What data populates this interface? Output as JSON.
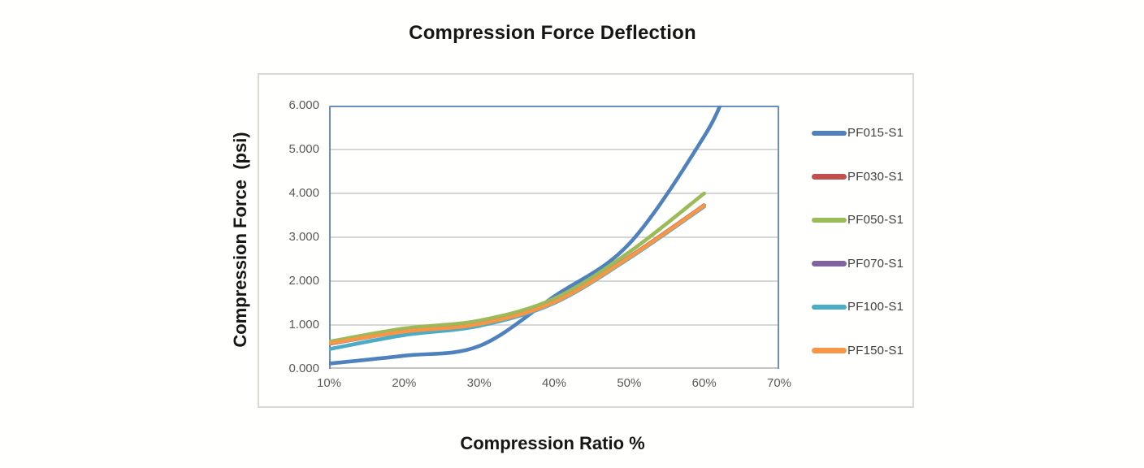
{
  "title": "Compression Force Deflection",
  "axes": {
    "y_title": "Compression Force  (psi)",
    "x_title": "Compression Ratio %",
    "y_ticks": [
      "6.000",
      "5.000",
      "4.000",
      "3.000",
      "2.000",
      "1.000",
      "0.000"
    ],
    "x_ticks": [
      "10%",
      "20%",
      "30%",
      "40%",
      "50%",
      "60%",
      "70%"
    ]
  },
  "colors": {
    "plot_border": "#6a8fbf",
    "bottom_axis_line": "#c4c4c4",
    "gridline": "#c9c9c9",
    "tick_label": "#595959",
    "legend_label": "#3f3f3f",
    "chart_area_border": "#dadad2"
  },
  "chart_data": {
    "type": "line",
    "title": "Compression Force Deflection",
    "xlabel": "Compression Ratio %",
    "ylabel": "Compression Force (psi)",
    "xlim_percent": [
      10,
      70
    ],
    "ylim": [
      0,
      6
    ],
    "y_tick_step": 1.0,
    "grid": "horizontal only",
    "legend_position": "right",
    "line_style": "smooth, no markers",
    "series": [
      {
        "name": "PF015-S1",
        "color": "#4F81BD",
        "x_percent": [
          10,
          20,
          30,
          40,
          50,
          60,
          63
        ],
        "values": [
          0.12,
          0.3,
          0.52,
          1.65,
          2.85,
          5.3,
          6.4
        ],
        "note": "curve rises past the plot top; clipped at 6.0 near x = 62%"
      },
      {
        "name": "PF030-S1",
        "color": "#C0504D",
        "x_percent": [
          10,
          20,
          30,
          40,
          50,
          60
        ],
        "values": [
          0.57,
          0.86,
          1.03,
          1.53,
          2.55,
          3.73
        ],
        "note": "almost fully hidden behind PF150-S1 curve"
      },
      {
        "name": "PF050-S1",
        "color": "#9BBB59",
        "x_percent": [
          10,
          20,
          30,
          40,
          50,
          60
        ],
        "values": [
          0.62,
          0.92,
          1.1,
          1.6,
          2.66,
          4.0
        ]
      },
      {
        "name": "PF070-S1",
        "color": "#8064A2",
        "x_percent": [
          10,
          20,
          30,
          40,
          50,
          60
        ],
        "values": [
          0.57,
          0.85,
          1.02,
          1.52,
          2.54,
          3.72
        ],
        "note": "almost fully hidden behind PF150-S1 curve"
      },
      {
        "name": "PF100-S1",
        "color": "#4BACC6",
        "x_percent": [
          10,
          20,
          30,
          40,
          50,
          60
        ],
        "values": [
          0.45,
          0.77,
          0.98,
          1.5,
          2.52,
          3.7
        ],
        "note": "visible below PF150-S1 at low ratios, hidden after ~30%"
      },
      {
        "name": "PF150-S1",
        "color": "#F79646",
        "x_percent": [
          10,
          20,
          30,
          40,
          50,
          60
        ],
        "values": [
          0.58,
          0.85,
          1.02,
          1.52,
          2.54,
          3.72
        ]
      }
    ]
  }
}
